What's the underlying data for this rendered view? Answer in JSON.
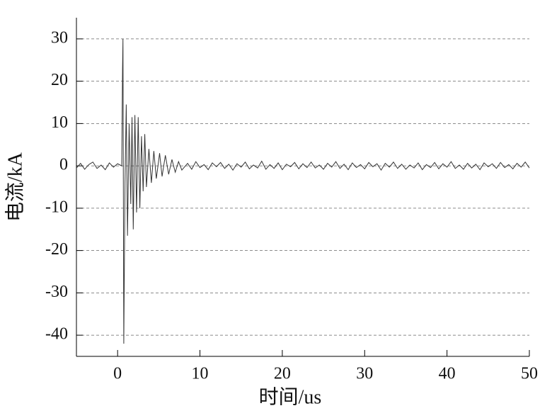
{
  "chart_data": {
    "type": "line",
    "xlabel": "时间/us",
    "ylabel": "电流/kA",
    "x": [
      -5,
      -4.5,
      -4,
      -3.5,
      -3,
      -2.5,
      -2,
      -1.5,
      -1,
      -0.5,
      0,
      0.5,
      0.6,
      0.65,
      0.75,
      0.9,
      1.05,
      1.2,
      1.4,
      1.6,
      1.75,
      1.9,
      2.1,
      2.3,
      2.5,
      2.7,
      2.9,
      3.1,
      3.3,
      3.5,
      3.8,
      4.1,
      4.4,
      4.7,
      5.1,
      5.4,
      5.8,
      6.2,
      6.6,
      7.0,
      7.4,
      7.8,
      8.5,
      9,
      9.5,
      10,
      10.5,
      11,
      11.5,
      12,
      12.5,
      13,
      13.5,
      14,
      14.5,
      15,
      15.5,
      16,
      16.5,
      17,
      17.5,
      18,
      18.5,
      19,
      19.5,
      20,
      20.5,
      21,
      21.5,
      22,
      22.5,
      23,
      23.5,
      24,
      24.5,
      25,
      25.5,
      26,
      26.5,
      27,
      27.5,
      28,
      28.5,
      29,
      29.5,
      30,
      30.5,
      31,
      31.5,
      32,
      32.5,
      33,
      33.5,
      34,
      34.5,
      35,
      35.5,
      36,
      36.5,
      37,
      37.5,
      38,
      38.5,
      39,
      39.5,
      40,
      40.5,
      41,
      41.5,
      42,
      42.5,
      43,
      43.5,
      44,
      44.5,
      45,
      45.5,
      46,
      46.5,
      47,
      47.5,
      48,
      48.5,
      49,
      49.5,
      50
    ],
    "values": [
      -0.5,
      0.6,
      -0.8,
      0.3,
      0.9,
      -0.6,
      0.2,
      -0.9,
      0.7,
      -0.3,
      0.5,
      0,
      23,
      30,
      -42,
      -4,
      14.5,
      -16.5,
      10,
      -9,
      11.5,
      -15,
      12,
      -11,
      11.5,
      -10,
      7,
      -6,
      7.5,
      -5,
      4,
      -4,
      3.5,
      -3,
      3,
      -2.5,
      2.5,
      -2,
      1.5,
      -1.5,
      1,
      -1,
      0.6,
      -0.8,
      1.0,
      -0.4,
      0.3,
      -0.9,
      0.7,
      -0.2,
      0.8,
      -0.6,
      0.4,
      -1.0,
      0.5,
      -0.3,
      0.9,
      -0.7,
      0.2,
      -0.5,
      1.1,
      -0.8,
      0.3,
      -0.6,
      0.7,
      -0.9,
      0.4,
      -0.2,
      0.8,
      -0.7,
      0.5,
      -0.4,
      0.9,
      -0.5,
      0.2,
      -0.8,
      0.6,
      -0.3,
      1.0,
      -0.6,
      0.4,
      -0.9,
      0.7,
      -0.4,
      0.3,
      -0.7,
      0.8,
      -0.2,
      0.5,
      -1.0,
      0.6,
      -0.3,
      0.9,
      -0.6,
      0.4,
      -0.8,
      0.2,
      -0.5,
      0.7,
      -0.9,
      0.3,
      -0.4,
      0.8,
      -0.7,
      0.5,
      -0.3,
      1.0,
      -0.6,
      0.2,
      -0.8,
      0.6,
      -0.5,
      0.4,
      -0.9,
      0.7,
      -0.2,
      0.5,
      -0.6,
      0.8,
      -0.4,
      0.3,
      -0.7,
      0.6,
      -0.3,
      0.9,
      -0.5
    ],
    "color": "#333333",
    "xlim": [
      -5,
      50
    ],
    "xticks": [
      0,
      10,
      20,
      30,
      40,
      50
    ],
    "ylim": [
      -45,
      35
    ],
    "yticks": [
      -40,
      -30,
      -20,
      -10,
      0,
      10,
      20,
      30
    ],
    "grid": true
  }
}
